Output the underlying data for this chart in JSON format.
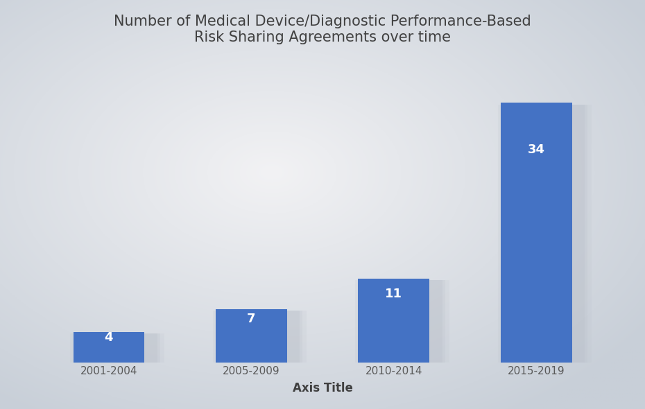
{
  "categories": [
    "2001-2004",
    "2005-2009",
    "2010-2014",
    "2015-2019"
  ],
  "values": [
    4,
    7,
    11,
    34
  ],
  "bar_color": "#4472C4",
  "bar_labels": [
    "4",
    "7",
    "11",
    "34"
  ],
  "label_color": "#ffffff",
  "label_fontsize": 13,
  "label_fontweight": "bold",
  "title_line1": "Number of Medical Device/Diagnostic Performance-Based",
  "title_line2": "Risk Sharing Agreements over time",
  "title_fontsize": 15,
  "title_color": "#404040",
  "xlabel": "Axis Title",
  "xlabel_fontsize": 12,
  "xlabel_fontweight": "bold",
  "xlabel_color": "#404040",
  "tick_fontsize": 11,
  "tick_color": "#595959",
  "ylim": [
    0,
    40
  ],
  "bar_width": 0.5,
  "bg_outer": "#c8cfd8",
  "bg_inner": "#f2f2f4",
  "shadow_color": "#b8bec8"
}
